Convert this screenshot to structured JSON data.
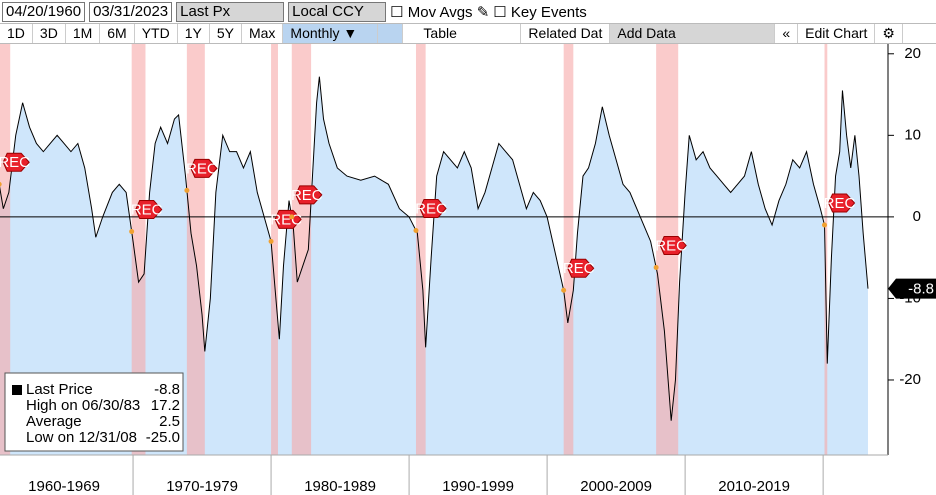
{
  "toolbar": {
    "start_date": "04/20/1960",
    "end_date": "03/31/2023",
    "field": "Last Px",
    "currency": "Local CCY",
    "mov_avgs": "Mov Avgs",
    "key_events": "Key Events",
    "ranges": [
      "1D",
      "3D",
      "1M",
      "6M",
      "YTD",
      "1Y",
      "5Y",
      "Max"
    ],
    "frequency": "Monthly ▼",
    "table": "Table",
    "related": "Related Dat",
    "add_data": "Add Data",
    "collapse": "«",
    "edit_chart": "Edit Chart",
    "settings": "⚙"
  },
  "legend": {
    "rows": [
      {
        "label": "Last Price",
        "value": "-8.8"
      },
      {
        "label": "High on 06/30/83",
        "value": "17.2"
      },
      {
        "label": "Average",
        "value": "2.5"
      },
      {
        "label": "Low on 12/31/08",
        "value": "-25.0"
      }
    ]
  },
  "chart_data": {
    "type": "line",
    "color": "#000000",
    "fill": "#cfe6fb",
    "shade_color": "#f7a9a9",
    "event_label": "REC",
    "x": [
      1960.3,
      1960.6,
      1961.0,
      1961.5,
      1962.0,
      1962.5,
      1963.0,
      1963.5,
      1964.0,
      1964.5,
      1965.0,
      1965.5,
      1966.0,
      1966.5,
      1967.0,
      1967.3,
      1967.8,
      1968.5,
      1969.0,
      1969.5,
      1970.0,
      1970.4,
      1970.8,
      1971.2,
      1971.6,
      1972.0,
      1972.5,
      1973.0,
      1973.3,
      1973.8,
      1974.2,
      1974.6,
      1975.0,
      1975.2,
      1975.6,
      1976.0,
      1976.5,
      1977.0,
      1977.5,
      1978.0,
      1978.5,
      1979.0,
      1979.5,
      1980.0,
      1980.3,
      1980.6,
      1980.9,
      1981.3,
      1981.6,
      1981.9,
      1982.3,
      1982.7,
      1983.0,
      1983.3,
      1983.5,
      1983.8,
      1984.2,
      1984.8,
      1985.5,
      1986.5,
      1987.5,
      1988.5,
      1989.3,
      1990.0,
      1990.6,
      1991.0,
      1991.2,
      1991.6,
      1992.0,
      1992.5,
      1993.0,
      1993.5,
      1994.0,
      1994.5,
      1995.0,
      1995.5,
      1996.0,
      1996.5,
      1997.0,
      1997.5,
      1998.0,
      1998.5,
      1999.0,
      1999.5,
      2000.0,
      2000.4,
      2000.8,
      2001.2,
      2001.5,
      2001.9,
      2002.2,
      2002.6,
      2003.0,
      2003.5,
      2004.0,
      2004.5,
      2005.0,
      2005.5,
      2006.0,
      2006.5,
      2007.0,
      2007.5,
      2008.0,
      2008.5,
      2008.99,
      2009.3,
      2009.6,
      2010.0,
      2010.3,
      2010.8,
      2011.3,
      2011.8,
      2012.3,
      2012.8,
      2013.3,
      2013.8,
      2014.3,
      2014.8,
      2015.3,
      2015.8,
      2016.3,
      2016.8,
      2017.3,
      2017.8,
      2018.3,
      2018.8,
      2019.3,
      2019.8,
      2020.1,
      2020.3,
      2020.6,
      2020.9,
      2021.2,
      2021.4,
      2021.7,
      2022.0,
      2022.3,
      2022.6,
      2022.9,
      2023.25
    ],
    "values": [
      4,
      1,
      3,
      10,
      14,
      11,
      9,
      8,
      9,
      10,
      9,
      8,
      9,
      6,
      1,
      -2.5,
      0,
      3,
      4,
      3,
      -3,
      -8,
      -7,
      3,
      9,
      11,
      9,
      12,
      12.5,
      5,
      -2,
      -6,
      -12,
      -16.5,
      -10,
      3,
      10,
      8,
      8,
      6,
      8,
      3,
      0,
      -3,
      -9,
      -15,
      -6,
      2,
      -1,
      -8,
      -6,
      -4,
      5,
      14,
      17.2,
      12,
      9,
      6,
      5,
      4.5,
      5,
      4,
      1,
      0,
      -2,
      -9,
      -16,
      -5,
      5,
      8,
      7,
      6,
      8,
      6,
      1,
      3,
      6,
      9,
      8,
      7,
      4,
      1,
      3,
      2,
      0,
      -3,
      -6,
      -9,
      -13,
      -9,
      -2,
      5,
      6,
      9,
      13.5,
      10,
      7,
      4,
      3,
      1,
      -1,
      -3,
      -7,
      -14,
      -25.0,
      -20,
      -8,
      3,
      10,
      7,
      8,
      6,
      5,
      4,
      3,
      4,
      5,
      8,
      4,
      1,
      -1,
      2,
      4,
      7,
      6,
      8,
      4,
      1,
      -1,
      -18,
      -5,
      5,
      8,
      15.5,
      10,
      6,
      10,
      5,
      -2,
      -8.8
    ],
    "shading": [
      [
        1960.3,
        1961.1
      ],
      [
        1969.9,
        1970.9
      ],
      [
        1973.9,
        1975.2
      ],
      [
        1980.0,
        1980.5
      ],
      [
        1981.5,
        1982.9
      ],
      [
        1990.5,
        1991.2
      ],
      [
        2001.2,
        2001.9
      ],
      [
        2007.9,
        2009.5
      ],
      [
        2020.1,
        2020.3
      ]
    ],
    "xlim": [
      1960.36,
      2024.7
    ],
    "xticks": [
      {
        "value": 1965,
        "label": "1960-1969"
      },
      {
        "value": 1975,
        "label": "1970-1979"
      },
      {
        "value": 1985,
        "label": "1980-1989"
      },
      {
        "value": 1995,
        "label": "1990-1999"
      },
      {
        "value": 2005,
        "label": "2000-2009"
      },
      {
        "value": 2015,
        "label": "2010-2019"
      }
    ],
    "ylim": [
      -29.2,
      21.2
    ],
    "yticks": [
      -20,
      -10,
      0,
      10,
      20
    ]
  }
}
